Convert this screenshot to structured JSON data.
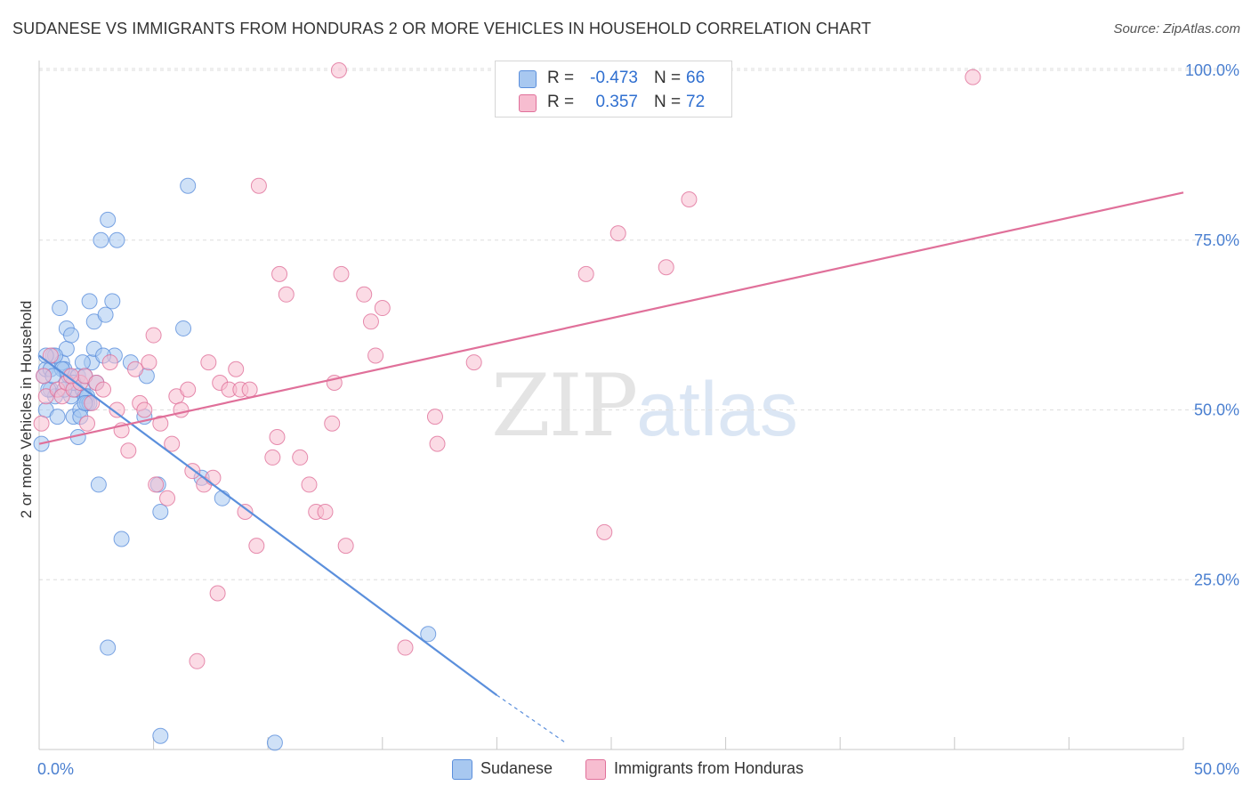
{
  "title": "SUDANESE VS IMMIGRANTS FROM HONDURAS 2 OR MORE VEHICLES IN HOUSEHOLD CORRELATION CHART",
  "source": "Source: ZipAtlas.com",
  "watermark": {
    "zip": "ZIP",
    "atlas": "atlas"
  },
  "stats": [
    {
      "name": "Sudanese",
      "r_label": "R =",
      "r": "-0.473",
      "n_label": "N =",
      "n": "66",
      "color": "#a8c8f0"
    },
    {
      "name": "Immigrants from Honduras",
      "r_label": "R =",
      "r": "0.357",
      "n_label": "N =",
      "n": "72",
      "color": "#f7bdd0"
    }
  ],
  "legend": [
    {
      "label": "Sudanese",
      "color": "#a8c8f0"
    },
    {
      "label": "Immigrants from Honduras",
      "color": "#f7bdd0"
    }
  ],
  "chart_data": {
    "type": "scatter",
    "title": "SUDANESE VS IMMIGRANTS FROM HONDURAS 2 OR MORE VEHICLES IN HOUSEHOLD CORRELATION CHART",
    "xlabel": "",
    "ylabel": "2 or more Vehicles in Household",
    "xlim": [
      0,
      50
    ],
    "ylim": [
      0,
      105
    ],
    "x_tick_labels": [
      "0.0%",
      "50.0%"
    ],
    "y_ticks": [
      25,
      50,
      75,
      100
    ],
    "y_tick_labels": [
      "25.0%",
      "50.0%",
      "75.0%",
      "100.0%"
    ],
    "grid": true,
    "series": [
      {
        "name": "Sudanese",
        "color": "#5b8fdc",
        "fill": "#a8c8f0",
        "trend": {
          "x": [
            0,
            20
          ],
          "y": [
            58,
            8
          ],
          "dashed_to": [
            23,
            1
          ]
        },
        "points": [
          [
            0.2,
            55
          ],
          [
            0.3,
            56
          ],
          [
            0.3,
            50
          ],
          [
            0.5,
            53
          ],
          [
            0.5,
            56
          ],
          [
            0.6,
            58
          ],
          [
            0.7,
            52
          ],
          [
            0.8,
            49
          ],
          [
            0.9,
            65
          ],
          [
            1.0,
            57
          ],
          [
            1.1,
            56
          ],
          [
            1.2,
            54
          ],
          [
            1.2,
            59
          ],
          [
            1.2,
            62
          ],
          [
            1.3,
            55
          ],
          [
            1.4,
            61
          ],
          [
            1.4,
            52
          ],
          [
            1.5,
            49
          ],
          [
            1.6,
            53
          ],
          [
            1.7,
            55
          ],
          [
            1.7,
            46
          ],
          [
            1.8,
            50
          ],
          [
            1.8,
            49
          ],
          [
            1.9,
            53
          ],
          [
            2.0,
            55
          ],
          [
            2.0,
            52
          ],
          [
            2.1,
            52
          ],
          [
            2.1,
            51
          ],
          [
            2.2,
            51
          ],
          [
            2.2,
            66
          ],
          [
            2.3,
            57
          ],
          [
            2.4,
            59
          ],
          [
            2.4,
            63
          ],
          [
            2.5,
            54
          ],
          [
            2.6,
            39
          ],
          [
            2.7,
            75
          ],
          [
            2.9,
            64
          ],
          [
            3.0,
            78
          ],
          [
            3.2,
            66
          ],
          [
            3.3,
            58
          ],
          [
            3.4,
            75
          ],
          [
            3.6,
            31
          ],
          [
            3.0,
            15
          ],
          [
            4.0,
            57
          ],
          [
            4.6,
            49
          ],
          [
            4.7,
            55
          ],
          [
            5.2,
            39
          ],
          [
            5.3,
            35
          ],
          [
            5.3,
            2
          ],
          [
            6.3,
            62
          ],
          [
            6.5,
            83
          ],
          [
            7.1,
            40
          ],
          [
            8.0,
            37
          ],
          [
            10.3,
            1
          ],
          [
            17.0,
            17
          ],
          [
            0.1,
            45
          ],
          [
            0.4,
            53
          ],
          [
            0.7,
            58
          ],
          [
            1.0,
            56
          ],
          [
            1.5,
            54
          ],
          [
            1.9,
            57
          ],
          [
            2.0,
            51
          ],
          [
            0.3,
            58
          ],
          [
            0.6,
            55
          ],
          [
            1.1,
            53
          ],
          [
            2.8,
            58
          ]
        ]
      },
      {
        "name": "Immigrants from Honduras",
        "color": "#e0709a",
        "fill": "#f7bdd0",
        "trend": {
          "x": [
            0,
            50
          ],
          "y": [
            45,
            82
          ]
        },
        "points": [
          [
            0.2,
            55
          ],
          [
            0.3,
            52
          ],
          [
            0.5,
            58
          ],
          [
            0.8,
            53
          ],
          [
            1.0,
            52
          ],
          [
            1.2,
            54
          ],
          [
            1.5,
            53
          ],
          [
            1.8,
            54
          ],
          [
            2.0,
            55
          ],
          [
            2.1,
            48
          ],
          [
            2.3,
            51
          ],
          [
            2.5,
            54
          ],
          [
            2.8,
            53
          ],
          [
            3.1,
            57
          ],
          [
            3.4,
            50
          ],
          [
            3.6,
            47
          ],
          [
            3.9,
            44
          ],
          [
            4.2,
            56
          ],
          [
            4.4,
            51
          ],
          [
            4.6,
            50
          ],
          [
            4.8,
            57
          ],
          [
            5.0,
            61
          ],
          [
            5.1,
            39
          ],
          [
            5.3,
            48
          ],
          [
            5.6,
            37
          ],
          [
            5.8,
            45
          ],
          [
            6.0,
            52
          ],
          [
            6.2,
            50
          ],
          [
            6.5,
            53
          ],
          [
            6.7,
            41
          ],
          [
            6.9,
            13
          ],
          [
            7.2,
            39
          ],
          [
            7.4,
            57
          ],
          [
            7.6,
            40
          ],
          [
            7.8,
            23
          ],
          [
            7.9,
            54
          ],
          [
            8.3,
            53
          ],
          [
            8.6,
            56
          ],
          [
            8.8,
            53
          ],
          [
            9.0,
            35
          ],
          [
            9.2,
            53
          ],
          [
            9.5,
            30
          ],
          [
            9.6,
            83
          ],
          [
            10.2,
            43
          ],
          [
            10.4,
            46
          ],
          [
            10.5,
            70
          ],
          [
            10.8,
            67
          ],
          [
            11.4,
            43
          ],
          [
            11.8,
            39
          ],
          [
            12.1,
            35
          ],
          [
            12.5,
            35
          ],
          [
            12.8,
            48
          ],
          [
            12.9,
            54
          ],
          [
            13.1,
            100
          ],
          [
            13.2,
            70
          ],
          [
            13.4,
            30
          ],
          [
            14.2,
            67
          ],
          [
            14.5,
            63
          ],
          [
            14.7,
            58
          ],
          [
            15.0,
            65
          ],
          [
            16.0,
            15
          ],
          [
            17.3,
            49
          ],
          [
            17.4,
            45
          ],
          [
            19.0,
            57
          ],
          [
            23.9,
            70
          ],
          [
            24.7,
            32
          ],
          [
            25.3,
            76
          ],
          [
            27.4,
            71
          ],
          [
            28.4,
            81
          ],
          [
            40.8,
            99
          ],
          [
            0.1,
            48
          ],
          [
            1.4,
            55
          ]
        ]
      }
    ]
  }
}
